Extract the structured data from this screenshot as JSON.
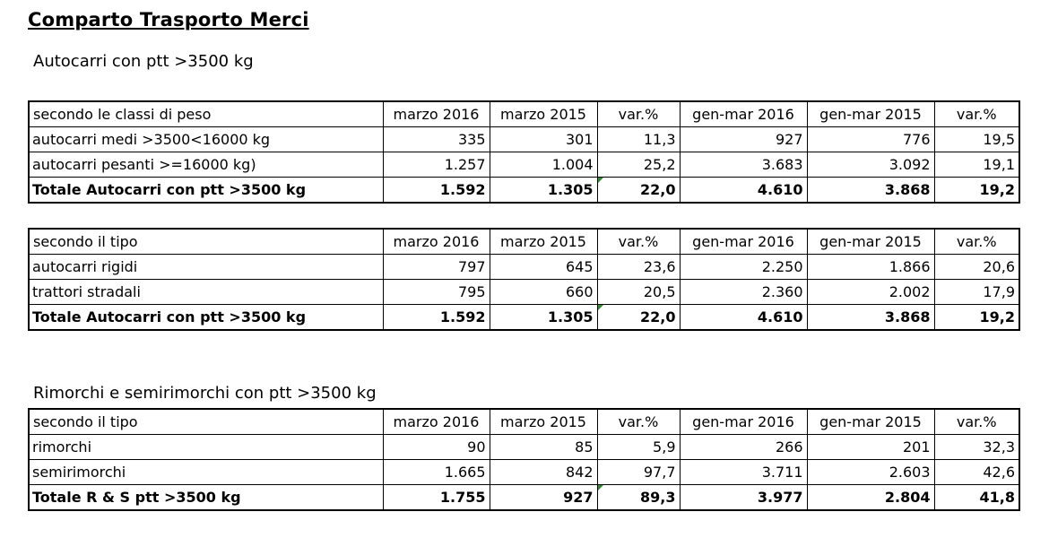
{
  "title": "Comparto Trasporto Merci",
  "section1": "Autocarri con ptt >3500 kg",
  "section2": "Rimorchi e semirimorchi con ptt >3500 kg",
  "columns": [
    "marzo 2016",
    "marzo 2015",
    "var.%",
    "gen-mar 2016",
    "gen-mar 2015",
    "var.%"
  ],
  "table1": {
    "header": "secondo le classi di peso",
    "rows": [
      [
        "autocarri medi >3500<16000 kg",
        "335",
        "301",
        "11,3",
        "927",
        "776",
        "19,5"
      ],
      [
        "autocarri pesanti >=16000 kg)",
        "1.257",
        "1.004",
        "25,2",
        "3.683",
        "3.092",
        "19,1"
      ],
      [
        "Totale Autocarri con ptt >3500 kg",
        "1.592",
        "1.305",
        "22,0",
        "4.610",
        "3.868",
        "19,2"
      ]
    ]
  },
  "table2": {
    "header": "secondo il tipo",
    "rows": [
      [
        "autocarri rigidi",
        "797",
        "645",
        "23,6",
        "2.250",
        "1.866",
        "20,6"
      ],
      [
        "trattori stradali",
        "795",
        "660",
        "20,5",
        "2.360",
        "2.002",
        "17,9"
      ],
      [
        "Totale Autocarri con ptt >3500 kg",
        "1.592",
        "1.305",
        "22,0",
        "4.610",
        "3.868",
        "19,2"
      ]
    ]
  },
  "table3": {
    "header": "secondo il tipo",
    "rows": [
      [
        "rimorchi",
        "90",
        "85",
        "5,9",
        "266",
        "201",
        "32,3"
      ],
      [
        "semirimorchi",
        "1.665",
        "842",
        "97,7",
        "3.711",
        "2.603",
        "42,6"
      ],
      [
        "Totale R & S ptt >3500 kg",
        "1.755",
        "927",
        "89,3",
        "3.977",
        "2.804",
        "41,8"
      ]
    ]
  }
}
